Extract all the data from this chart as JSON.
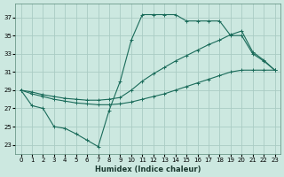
{
  "xlabel": "Humidex (Indice chaleur)",
  "bg_color": "#cce8e0",
  "grid_color": "#aaccc4",
  "line_color": "#1a6b5a",
  "xlim": [
    -0.5,
    23.5
  ],
  "ylim": [
    22.0,
    38.5
  ],
  "xticks": [
    0,
    1,
    2,
    3,
    4,
    5,
    6,
    7,
    8,
    9,
    10,
    11,
    12,
    13,
    14,
    15,
    16,
    17,
    18,
    19,
    20,
    21,
    22,
    23
  ],
  "yticks": [
    23,
    25,
    27,
    29,
    31,
    33,
    35,
    37
  ],
  "series1_x": [
    0,
    1,
    2,
    3,
    4,
    5,
    6,
    7,
    8,
    9,
    10,
    11,
    12,
    13,
    14,
    15,
    16,
    17,
    18,
    19,
    20,
    21,
    22,
    23
  ],
  "series1_y": [
    29,
    27.3,
    27,
    25,
    24.8,
    24.2,
    23.5,
    22.8,
    26.8,
    30,
    34.5,
    37.3,
    37.3,
    37.3,
    37.3,
    36.6,
    36.6,
    36.6,
    36.6,
    35.0,
    35.0,
    33.0,
    32.2,
    31.2
  ],
  "series2_x": [
    0,
    1,
    2,
    3,
    4,
    5,
    6,
    7,
    8,
    9,
    10,
    11,
    12,
    13,
    14,
    15,
    16,
    17,
    18,
    19,
    20,
    21,
    22,
    23
  ],
  "series2_y": [
    29,
    28.6,
    28.3,
    28.0,
    27.8,
    27.6,
    27.5,
    27.4,
    27.4,
    27.5,
    27.7,
    28.0,
    28.3,
    28.6,
    29.0,
    29.4,
    29.8,
    30.2,
    30.6,
    31.0,
    31.2,
    31.2,
    31.2,
    31.2
  ],
  "series3_x": [
    0,
    1,
    2,
    3,
    4,
    5,
    6,
    7,
    8,
    9,
    10,
    11,
    12,
    13,
    14,
    15,
    16,
    17,
    18,
    19,
    20,
    21,
    22,
    23
  ],
  "series3_y": [
    29,
    28.8,
    28.5,
    28.3,
    28.1,
    28.0,
    27.9,
    27.9,
    28.0,
    28.2,
    29.0,
    30.0,
    30.8,
    31.5,
    32.2,
    32.8,
    33.4,
    34.0,
    34.5,
    35.1,
    35.5,
    33.2,
    32.3,
    31.2
  ]
}
